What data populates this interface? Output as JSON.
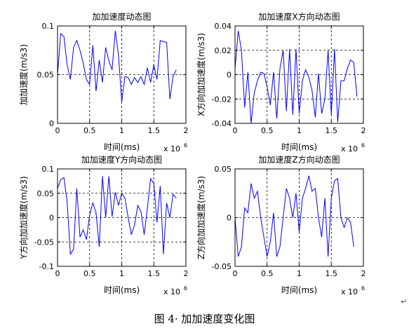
{
  "figure_caption": "图 4· 加加速度变化图",
  "para_mark": "↵",
  "chart_data": [
    {
      "type": "line",
      "title": "加加速度动态图",
      "xlabel": "时间(ms)",
      "ylabel": "加加速度(m/s3)",
      "x_exponent": "x 10",
      "x_exponent_power": "6",
      "xlim": [
        0,
        2
      ],
      "ylim": [
        0,
        0.1
      ],
      "xticks": [
        0,
        0.5,
        1,
        1.5,
        2
      ],
      "xtick_labels": [
        "0",
        "0.5",
        "1",
        "1.5",
        "2"
      ],
      "yticks": [
        0,
        0.05,
        0.1
      ],
      "ytick_labels": [
        "0",
        "0.05",
        "0.1"
      ],
      "grid": true,
      "series": [
        {
          "color": "#0000ff",
          "x": [
            0,
            0.05,
            0.1,
            0.15,
            0.2,
            0.25,
            0.3,
            0.35,
            0.4,
            0.45,
            0.5,
            0.55,
            0.6,
            0.65,
            0.7,
            0.75,
            0.8,
            0.85,
            0.9,
            0.95,
            1.0,
            1.05,
            1.1,
            1.15,
            1.2,
            1.25,
            1.3,
            1.35,
            1.4,
            1.45,
            1.5,
            1.55,
            1.6,
            1.65,
            1.7,
            1.75,
            1.8,
            1.85
          ],
          "y": [
            0.05,
            0.092,
            0.089,
            0.06,
            0.045,
            0.078,
            0.085,
            0.075,
            0.062,
            0.045,
            0.04,
            0.08,
            0.033,
            0.065,
            0.042,
            0.078,
            0.064,
            0.055,
            0.095,
            0.07,
            0.022,
            0.048,
            0.047,
            0.04,
            0.047,
            0.042,
            0.048,
            0.04,
            0.057,
            0.042,
            0.06,
            0.045,
            0.085,
            0.084,
            0.083,
            0.025,
            0.048,
            0.055
          ]
        }
      ]
    },
    {
      "type": "line",
      "title": "加加速度X方向动态图",
      "xlabel": "时间(ms)",
      "ylabel": "X方向加加速度(m/s3)",
      "x_exponent": "x 10",
      "x_exponent_power": "6",
      "xlim": [
        0,
        2
      ],
      "ylim": [
        -0.04,
        0.04
      ],
      "xticks": [
        0,
        0.5,
        1,
        1.5,
        2
      ],
      "xtick_labels": [
        "0",
        "0.5",
        "1",
        "1.5",
        "2"
      ],
      "yticks": [
        -0.04,
        -0.02,
        0,
        0.02,
        0.04
      ],
      "ytick_labels": [
        "-0.04",
        "-0.02",
        "0",
        "0.02",
        "0.04"
      ],
      "grid": true,
      "series": [
        {
          "color": "#0000ff",
          "x": [
            0,
            0.05,
            0.1,
            0.15,
            0.2,
            0.25,
            0.3,
            0.35,
            0.4,
            0.45,
            0.5,
            0.55,
            0.6,
            0.65,
            0.7,
            0.75,
            0.8,
            0.85,
            0.9,
            0.95,
            1.0,
            1.05,
            1.1,
            1.15,
            1.2,
            1.25,
            1.3,
            1.35,
            1.4,
            1.45,
            1.5,
            1.55,
            1.6,
            1.65,
            1.7,
            1.75,
            1.8,
            1.85,
            1.9
          ],
          "y": [
            0.005,
            0.036,
            0.02,
            -0.027,
            0.002,
            -0.04,
            -0.015,
            -0.005,
            0.002,
            0.001,
            -0.01,
            -0.025,
            0.002,
            -0.036,
            0.005,
            0.02,
            -0.03,
            0.021,
            -0.033,
            0.021,
            -0.032,
            -0.005,
            0.004,
            -0.002,
            -0.013,
            -0.035,
            0.001,
            -0.032,
            -0.02,
            0.02,
            -0.033,
            0.021,
            -0.039,
            -0.005,
            -0.005,
            0.005,
            0.012,
            0.01,
            -0.018
          ]
        }
      ]
    },
    {
      "type": "line",
      "title": "加加速度Y方向动态图",
      "xlabel": "时间(ms)",
      "ylabel": "Y方向加加速度(m/s3)",
      "x_exponent": "x 10",
      "x_exponent_power": "6",
      "xlim": [
        0,
        2
      ],
      "ylim": [
        -0.1,
        0.1
      ],
      "xticks": [
        0,
        0.5,
        1,
        1.5,
        2
      ],
      "xtick_labels": [
        "0",
        "0.5",
        "1",
        "1.5",
        "2"
      ],
      "yticks": [
        -0.1,
        -0.05,
        0,
        0.05,
        0.1
      ],
      "ytick_labels": [
        "-0.1",
        "-0.05",
        "0",
        "0.05",
        "0.1"
      ],
      "grid": true,
      "series": [
        {
          "color": "#0000ff",
          "x": [
            0,
            0.05,
            0.1,
            0.15,
            0.2,
            0.25,
            0.3,
            0.35,
            0.4,
            0.45,
            0.5,
            0.55,
            0.6,
            0.65,
            0.7,
            0.75,
            0.8,
            0.85,
            0.9,
            0.95,
            1.0,
            1.05,
            1.1,
            1.15,
            1.2,
            1.25,
            1.3,
            1.35,
            1.4,
            1.45,
            1.5,
            1.55,
            1.6,
            1.65,
            1.7,
            1.75,
            1.8,
            1.85
          ],
          "y": [
            0.06,
            0.078,
            0.082,
            0.032,
            -0.075,
            -0.065,
            0.06,
            -0.04,
            -0.025,
            -0.045,
            0.005,
            0.03,
            0.01,
            -0.06,
            0.085,
            0.0,
            0.085,
            0.002,
            0.052,
            0.025,
            0.05,
            0.04,
            0.0,
            -0.035,
            -0.015,
            0.025,
            0.012,
            -0.035,
            0.02,
            0.08,
            0.07,
            -0.01,
            0.065,
            -0.075,
            0.03,
            0.0,
            0.048,
            0.04
          ]
        }
      ]
    },
    {
      "type": "line",
      "title": "加加速度Z方向动态图",
      "xlabel": "时间(ms)",
      "ylabel": "Z方向加加速度(m/s3)",
      "x_exponent": "x 10",
      "x_exponent_power": "6",
      "xlim": [
        0,
        2
      ],
      "ylim": [
        -0.05,
        0.05
      ],
      "xticks": [
        0,
        0.5,
        1,
        1.5,
        2
      ],
      "xtick_labels": [
        "0",
        "0.5",
        "1",
        "1.5",
        "2"
      ],
      "yticks": [
        -0.05,
        0,
        0.05
      ],
      "ytick_labels": [
        "-0.05",
        "0",
        "0.05"
      ],
      "grid": true,
      "series": [
        {
          "color": "#0000ff",
          "x": [
            0,
            0.05,
            0.1,
            0.15,
            0.2,
            0.25,
            0.3,
            0.35,
            0.4,
            0.45,
            0.5,
            0.55,
            0.6,
            0.65,
            0.7,
            0.75,
            0.8,
            0.85,
            0.9,
            0.95,
            1.0,
            1.05,
            1.1,
            1.15,
            1.2,
            1.25,
            1.3,
            1.35,
            1.4,
            1.45,
            1.5,
            1.55,
            1.6,
            1.65,
            1.7,
            1.75,
            1.8,
            1.85
          ],
          "y": [
            0.0,
            -0.04,
            -0.03,
            0.01,
            0.005,
            0.035,
            0.02,
            0.027,
            0.0,
            -0.02,
            -0.04,
            -0.025,
            0.005,
            -0.04,
            -0.03,
            0.0,
            0.03,
            0.02,
            0.0,
            0.025,
            -0.015,
            0.02,
            0.03,
            0.043,
            0.027,
            0.03,
            0.0,
            -0.02,
            0.02,
            -0.04,
            0.02,
            0.038,
            0.04,
            0.0,
            -0.01,
            0.0,
            -0.005,
            -0.03
          ]
        }
      ]
    }
  ]
}
